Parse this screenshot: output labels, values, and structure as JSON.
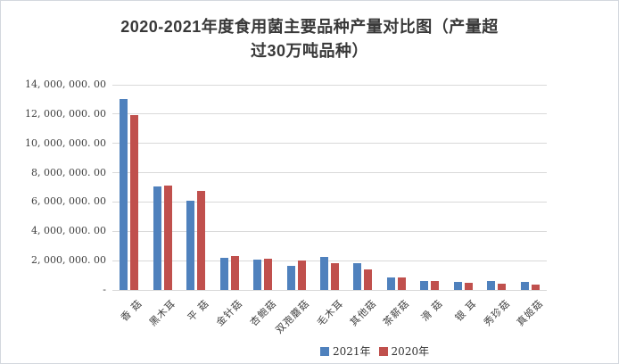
{
  "title": {
    "line1": "2020-2021年度食用菌主要品种产量对比图（产量超",
    "line2": "过30万吨品种）"
  },
  "chart_data": {
    "type": "bar",
    "title": "2020-2021年度食用菌主要品种产量对比图（产量超过30万吨品种）",
    "categories": [
      "香 菇",
      "黑木耳",
      "平 菇",
      "金针菇",
      "杏鲍菇",
      "双孢蘑菇",
      "毛木耳",
      "其他菇",
      "茶薪菇",
      "滑 菇",
      "银 耳",
      "秀珍菇",
      "真姬菇"
    ],
    "series": [
      {
        "name": "2021年",
        "color": "#4F81BD",
        "values": [
          13050000,
          7080000,
          6090000,
          2200000,
          2090000,
          1640000,
          2270000,
          1840000,
          830000,
          610000,
          550000,
          630000,
          530000
        ]
      },
      {
        "name": "2020年",
        "color": "#C0504D",
        "values": [
          11950000,
          7100000,
          6780000,
          2300000,
          2140000,
          2030000,
          1830000,
          1420000,
          870000,
          630000,
          490000,
          440000,
          380000
        ]
      }
    ],
    "ylabel": "",
    "xlabel": "",
    "ylim": [
      0,
      14000000
    ],
    "grid": true,
    "legend_position": "bottom",
    "yticks": [
      {
        "label": "14, 000, 000. 00",
        "value": 14000000
      },
      {
        "label": "12, 000, 000. 00",
        "value": 12000000
      },
      {
        "label": "10, 000, 000. 00",
        "value": 10000000
      },
      {
        "label": "8, 000, 000. 00",
        "value": 8000000
      },
      {
        "label": "6, 000, 000. 00",
        "value": 6000000
      },
      {
        "label": "4, 000, 000. 00",
        "value": 4000000
      },
      {
        "label": "2, 000, 000. 00",
        "value": 2000000
      },
      {
        "label": "-",
        "value": 0
      }
    ]
  },
  "colors": {
    "grid": "#D9D9D9",
    "axis_text": "#404040",
    "title_text": "#383838",
    "border": "#D3D8DE",
    "background": "#FFFFFF"
  }
}
